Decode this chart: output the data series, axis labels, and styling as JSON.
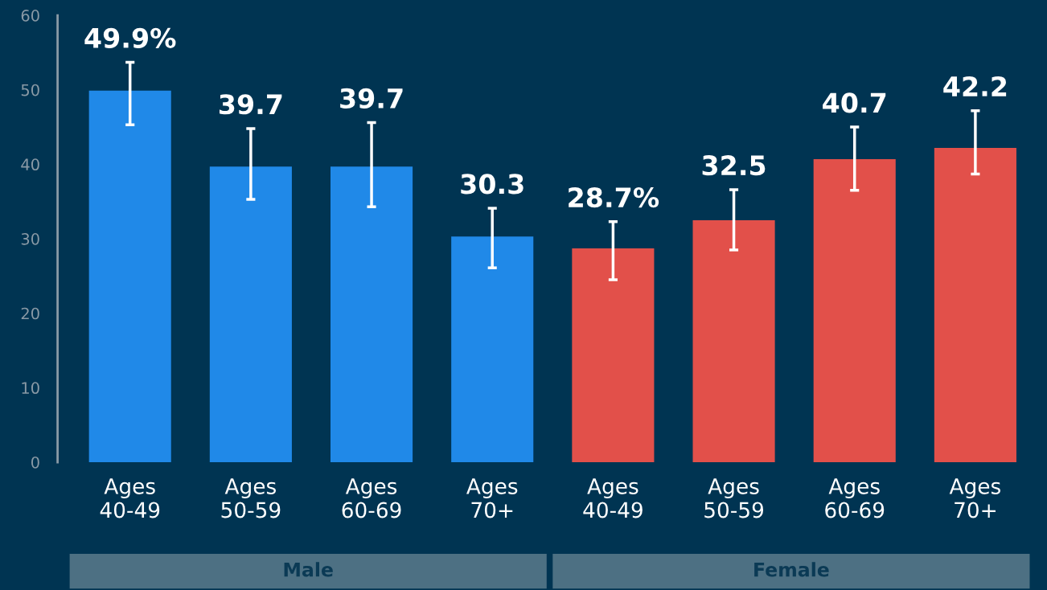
{
  "chart_data": {
    "type": "bar",
    "categories": [
      "Ages\n40-49",
      "Ages\n50-59",
      "Ages\n60-69",
      "Ages\n70+",
      "Ages\n40-49",
      "Ages\n50-59",
      "Ages\n60-69",
      "Ages\n70+"
    ],
    "values": [
      49.9,
      39.7,
      39.7,
      30.3,
      28.7,
      32.5,
      40.7,
      42.2
    ],
    "colors": [
      "#2089e8",
      "#2089e8",
      "#2089e8",
      "#2089e8",
      "#e2504a",
      "#e2504a",
      "#e2504a",
      "#e2504a"
    ],
    "errors": [
      [
        45.3,
        53.7
      ],
      [
        35.3,
        44.8
      ],
      [
        34.3,
        45.6
      ],
      [
        26.1,
        34.1
      ],
      [
        24.5,
        32.3
      ],
      [
        28.5,
        36.6
      ],
      [
        36.5,
        45.0
      ],
      [
        38.7,
        47.2
      ]
    ],
    "value_labels": [
      "49.9%",
      "39.7",
      "39.7",
      "30.3",
      "28.7%",
      "32.5",
      "40.7",
      "42.2"
    ],
    "annotations": [
      "Male",
      "Female"
    ],
    "ylim": [
      0,
      60
    ],
    "yticks": [
      0,
      10,
      20,
      30,
      40,
      50,
      60
    ],
    "grid": false,
    "legend": false
  }
}
